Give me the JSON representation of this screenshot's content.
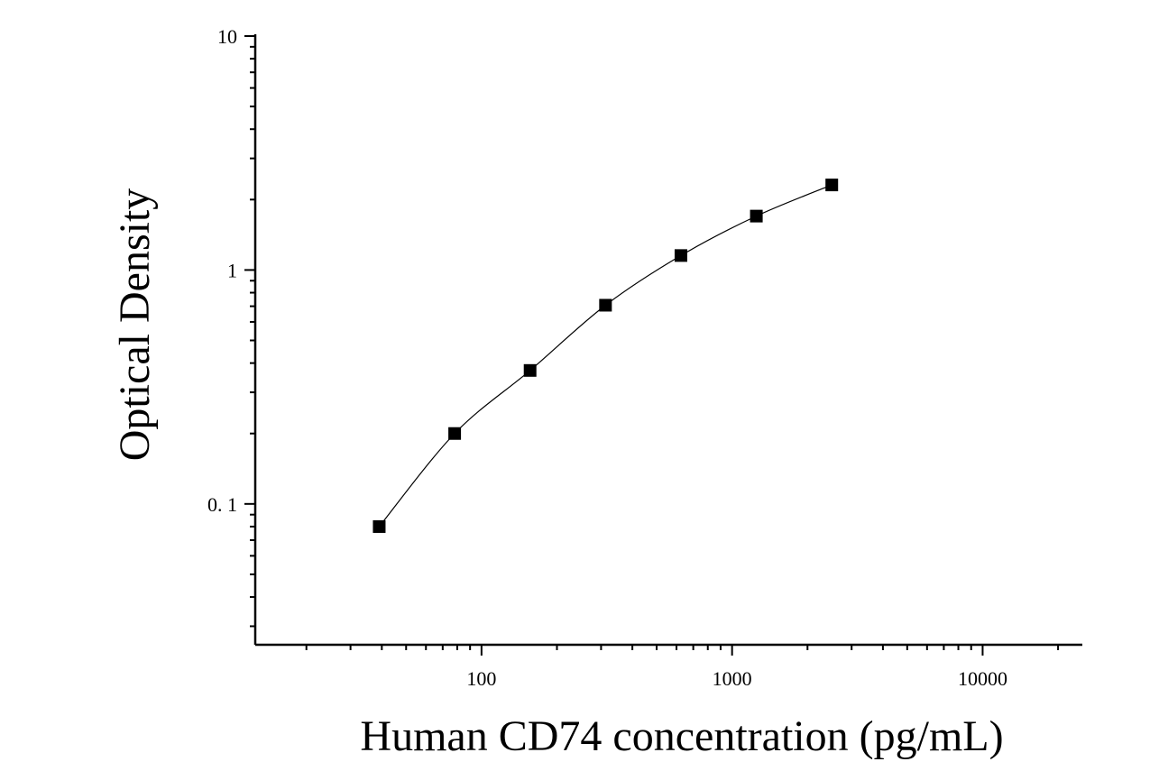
{
  "chart_data": {
    "type": "scatter",
    "x_label": "Human CD74 concentration (pg/mL)",
    "y_label": "Optical Density",
    "x": [
      39.06,
      78.125,
      156.25,
      312.5,
      625,
      1250,
      2500
    ],
    "values": [
      0.08,
      0.2,
      0.372,
      0.707,
      1.153,
      1.7,
      2.31
    ],
    "color": "#000000",
    "fit_curve": true,
    "xlog": true,
    "ylog": true,
    "xlim": [
      12.5,
      25000
    ],
    "ylim": [
      0.025,
      10
    ],
    "xticks": [
      100,
      1000,
      10000
    ],
    "yticks": [
      10,
      1,
      {
        "value": 0.1,
        "label": "0. 1"
      }
    ]
  }
}
